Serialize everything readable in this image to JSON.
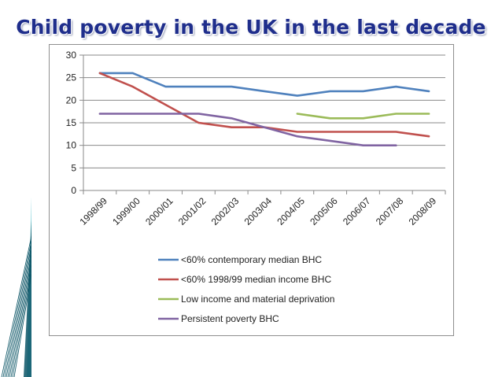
{
  "slide": {
    "title": "Child poverty in the UK in the last decade"
  },
  "colors": {
    "title": "#1f2e8c",
    "gridline": "#8a8a8a",
    "decoration_dark": "#0b5566",
    "decoration_light": "#7fd1d9"
  },
  "chart_data": {
    "type": "line",
    "title": "",
    "xlabel": "",
    "ylabel": "",
    "ylim": [
      0,
      30
    ],
    "yticks": [
      0,
      5,
      10,
      15,
      20,
      25,
      30
    ],
    "grid": true,
    "legend_position": "bottom",
    "categories": [
      "1998/99",
      "1999/00",
      "2000/01",
      "2001/02",
      "2002/03",
      "2003/04",
      "2004/05",
      "2005/06",
      "2006/07",
      "2007/08",
      "2008/09"
    ],
    "series": [
      {
        "name": "<60% contemporary median BHC",
        "color": "#4f81bd",
        "values": [
          26,
          26,
          23,
          23,
          23,
          22,
          21,
          22,
          22,
          23,
          22
        ]
      },
      {
        "name": "<60% 1998/99 median income BHC",
        "color": "#c0504d",
        "values": [
          26,
          23,
          19,
          15,
          14,
          14,
          13,
          13,
          13,
          13,
          12
        ]
      },
      {
        "name": "Low income and material deprivation",
        "color": "#9bbb59",
        "values": [
          null,
          null,
          null,
          null,
          null,
          null,
          17,
          16,
          16,
          17,
          17
        ]
      },
      {
        "name": "Persistent poverty BHC",
        "color": "#8064a2",
        "values": [
          17,
          17,
          17,
          17,
          16,
          14,
          12,
          11,
          10,
          10,
          null
        ]
      }
    ]
  }
}
